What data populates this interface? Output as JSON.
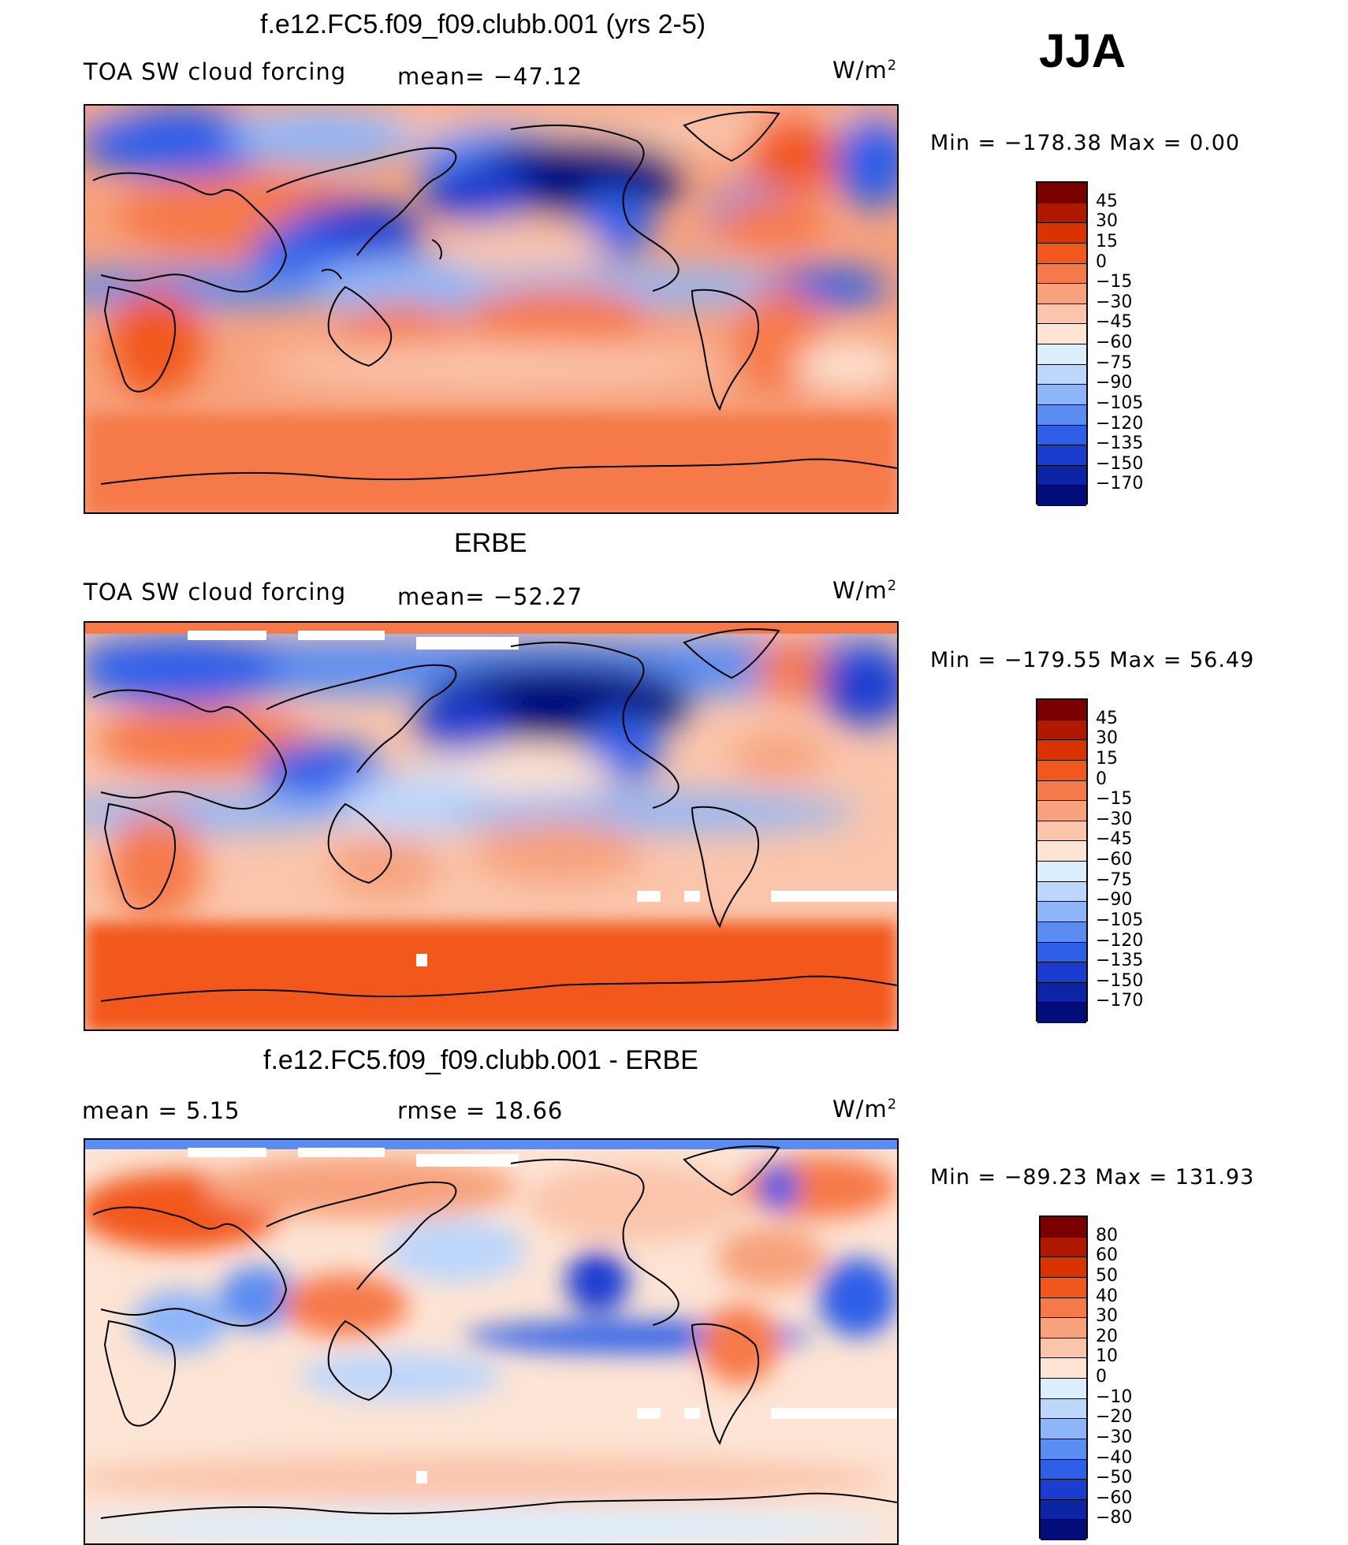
{
  "season": "JJA",
  "units": "W/m",
  "units_exp": "2",
  "panels": [
    {
      "title": "f.e12.FC5.f09_f09.clubb.001 (yrs 2-5)",
      "variable": "TOA SW cloud forcing",
      "stat1": "mean=  −47.12",
      "stat2": "",
      "minmax": "Min  =  −178.38  Max  =      0.00",
      "levels": [
        "45",
        "30",
        "15",
        "0",
        "−15",
        "−30",
        "−45",
        "−60",
        "−75",
        "−90",
        "−105",
        "−120",
        "−135",
        "−150",
        "−170"
      ],
      "colors": [
        "#7a0000",
        "#b01800",
        "#d83300",
        "#f2581d",
        "#f6794a",
        "#f7a27d",
        "#fac5ab",
        "#fde4d4",
        "#dceefc",
        "#bdd6fb",
        "#8eb5f8",
        "#5a8cf2",
        "#2f5fe8",
        "#1a3dd0",
        "#0b25a6",
        "#030d79"
      ]
    },
    {
      "title": "ERBE",
      "variable": "TOA SW cloud forcing",
      "stat1": "mean=  −52.27",
      "stat2": "",
      "minmax": "Min  =  −179.55  Max  =    56.49",
      "levels": [
        "45",
        "30",
        "15",
        "0",
        "−15",
        "−30",
        "−45",
        "−60",
        "−75",
        "−90",
        "−105",
        "−120",
        "−135",
        "−150",
        "−170"
      ],
      "colors": [
        "#7a0000",
        "#b01800",
        "#d83300",
        "#f2581d",
        "#f6794a",
        "#f7a27d",
        "#fac5ab",
        "#fde4d4",
        "#dceefc",
        "#bdd6fb",
        "#8eb5f8",
        "#5a8cf2",
        "#2f5fe8",
        "#1a3dd0",
        "#0b25a6",
        "#030d79"
      ]
    },
    {
      "title": "f.e12.FC5.f09_f09.clubb.001 - ERBE",
      "variable": "",
      "stat1": "mean  =      5.15",
      "stat2": "rmse  =    18.66",
      "minmax": "Min  =  −89.23  Max  =  131.93",
      "levels": [
        "80",
        "60",
        "50",
        "40",
        "30",
        "20",
        "10",
        "0",
        "−10",
        "−20",
        "−30",
        "−40",
        "−50",
        "−60",
        "−80"
      ],
      "colors": [
        "#7a0000",
        "#b01800",
        "#d83300",
        "#f2581d",
        "#f6794a",
        "#f7a27d",
        "#fac5ab",
        "#fde4d4",
        "#dceefc",
        "#bdd6fb",
        "#8eb5f8",
        "#5a8cf2",
        "#2f5fe8",
        "#1a3dd0",
        "#0b25a6",
        "#030d79"
      ]
    }
  ]
}
